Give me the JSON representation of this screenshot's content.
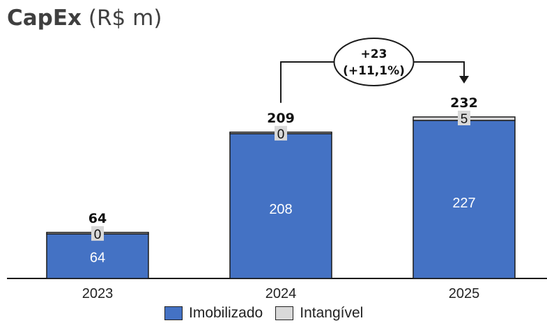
{
  "title": {
    "main": "CapEx",
    "unit": "(R$ m)"
  },
  "chart_data": {
    "type": "bar",
    "stacked": true,
    "categories": [
      "2023",
      "2024",
      "2025"
    ],
    "series": [
      {
        "name": "Imobilizado",
        "values": [
          64,
          208,
          227
        ],
        "color": "#4472c4"
      },
      {
        "name": "Intangível",
        "values": [
          0,
          0,
          5
        ],
        "color": "#d9d9d9"
      }
    ],
    "totals": [
      "64",
      "209",
      "232"
    ],
    "series_labels": [
      [
        "64",
        "208",
        "227"
      ],
      [
        "0",
        "0",
        "5"
      ]
    ],
    "ylim": [
      0,
      240
    ],
    "grid": false,
    "legend": "bottom",
    "annotation": {
      "from": "2024",
      "to": "2025",
      "line1": "+23",
      "line2": "(+11,1%)"
    }
  },
  "legend": [
    {
      "label": "Imobilizado",
      "color": "#4472c4"
    },
    {
      "label": "Intangível",
      "color": "#d9d9d9"
    }
  ]
}
